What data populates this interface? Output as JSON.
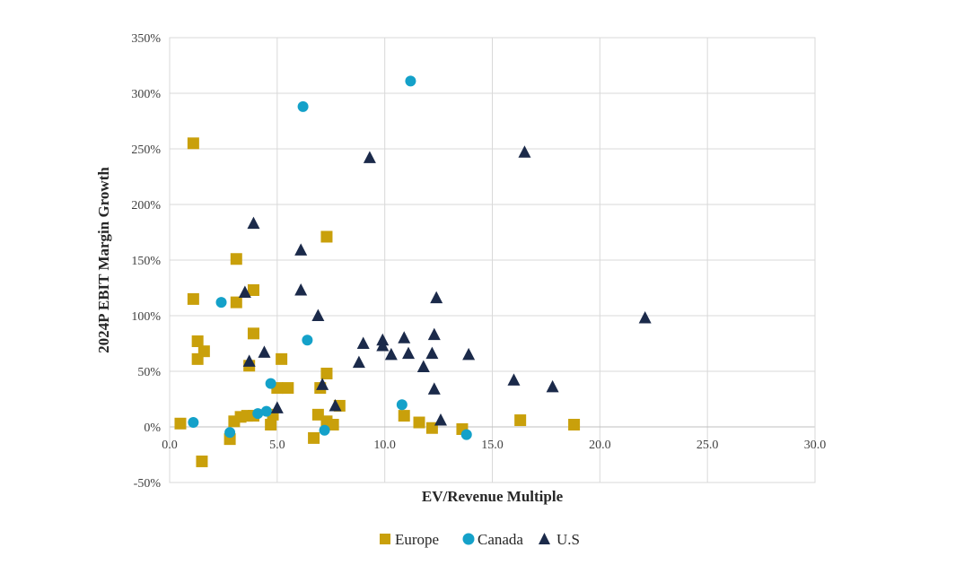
{
  "chart_data": {
    "type": "scatter",
    "title": "",
    "xlabel": "EV/Revenue Multiple",
    "ylabel": "2024P EBIT Margin Growth",
    "xlim": [
      0,
      30
    ],
    "ylim": [
      -50,
      350
    ],
    "x_ticks": [
      0,
      5,
      10,
      15,
      20,
      25,
      30
    ],
    "x_tick_labels": [
      "0.0",
      "5.0",
      "10.0",
      "15.0",
      "20.0",
      "25.0",
      "30.0"
    ],
    "y_ticks": [
      -50,
      0,
      50,
      100,
      150,
      200,
      250,
      300,
      350
    ],
    "y_tick_labels": [
      "-50%",
      "0%",
      "50%",
      "100%",
      "150%",
      "200%",
      "250%",
      "300%",
      "350%"
    ],
    "grid": true,
    "legend_position": "bottom",
    "series": [
      {
        "name": "Europe",
        "marker": "square",
        "color": "#C9A00B",
        "points": [
          [
            1.1,
            255
          ],
          [
            1.1,
            115
          ],
          [
            1.3,
            77
          ],
          [
            1.3,
            61
          ],
          [
            1.6,
            68
          ],
          [
            0.5,
            3
          ],
          [
            1.5,
            -31
          ],
          [
            2.8,
            -11
          ],
          [
            3.1,
            151
          ],
          [
            3.1,
            112
          ],
          [
            3.9,
            123
          ],
          [
            3.9,
            84
          ],
          [
            3.7,
            55
          ],
          [
            3.0,
            5
          ],
          [
            3.3,
            9
          ],
          [
            3.6,
            10
          ],
          [
            3.9,
            10
          ],
          [
            4.7,
            2
          ],
          [
            4.8,
            11
          ],
          [
            5.0,
            35
          ],
          [
            5.5,
            35
          ],
          [
            5.2,
            61
          ],
          [
            6.7,
            -10
          ],
          [
            6.9,
            11
          ],
          [
            7.0,
            35
          ],
          [
            7.3,
            171
          ],
          [
            7.3,
            48
          ],
          [
            7.3,
            5
          ],
          [
            7.6,
            2
          ],
          [
            7.9,
            19
          ],
          [
            10.9,
            10
          ],
          [
            11.6,
            4
          ],
          [
            12.2,
            -1
          ],
          [
            13.6,
            -2
          ],
          [
            16.3,
            6
          ],
          [
            18.8,
            2
          ]
        ]
      },
      {
        "name": "Canada",
        "marker": "circle",
        "color": "#14A1C9",
        "points": [
          [
            11.2,
            311
          ],
          [
            6.2,
            288
          ],
          [
            2.4,
            112
          ],
          [
            6.4,
            78
          ],
          [
            1.1,
            4
          ],
          [
            2.8,
            -5
          ],
          [
            4.7,
            39
          ],
          [
            4.1,
            12
          ],
          [
            4.5,
            14
          ],
          [
            7.2,
            -3
          ],
          [
            10.8,
            20
          ],
          [
            13.8,
            -7
          ]
        ]
      },
      {
        "name": "U.S",
        "marker": "triangle",
        "color": "#1B2A4A",
        "points": [
          [
            9.3,
            242
          ],
          [
            16.5,
            247
          ],
          [
            3.9,
            183
          ],
          [
            6.1,
            159
          ],
          [
            6.1,
            123
          ],
          [
            3.5,
            121
          ],
          [
            6.9,
            100
          ],
          [
            3.7,
            59
          ],
          [
            4.4,
            67
          ],
          [
            7.1,
            38
          ],
          [
            7.7,
            19
          ],
          [
            5.0,
            17
          ],
          [
            8.8,
            58
          ],
          [
            9.0,
            75
          ],
          [
            9.9,
            78
          ],
          [
            9.9,
            73
          ],
          [
            10.3,
            65
          ],
          [
            10.9,
            80
          ],
          [
            11.1,
            66
          ],
          [
            11.8,
            54
          ],
          [
            12.2,
            66
          ],
          [
            12.3,
            83
          ],
          [
            12.3,
            34
          ],
          [
            12.4,
            116
          ],
          [
            12.6,
            6
          ],
          [
            13.9,
            65
          ],
          [
            16.0,
            42
          ],
          [
            17.8,
            36
          ],
          [
            22.1,
            98
          ]
        ]
      }
    ]
  }
}
